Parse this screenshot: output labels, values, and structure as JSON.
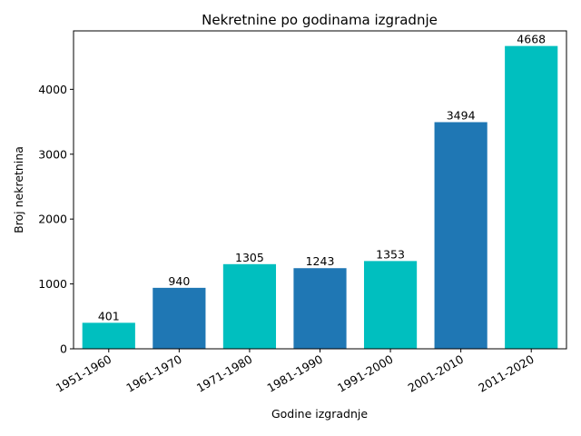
{
  "chart_data": {
    "type": "bar",
    "title": "Nekretnine po godinama izgradnje",
    "xlabel": "Godine izgradnje",
    "ylabel": "Broj nekretnina",
    "categories": [
      "1951-1960",
      "1961-1970",
      "1971-1980",
      "1981-1990",
      "1991-2000",
      "2001-2010",
      "2011-2020"
    ],
    "values": [
      401,
      940,
      1305,
      1243,
      1353,
      3494,
      4668
    ],
    "data_labels": [
      "401",
      "940",
      "1305",
      "1243",
      "1353",
      "3494",
      "4668"
    ],
    "bar_colors": [
      "#00bfbf",
      "#1f77b4",
      "#00bfbf",
      "#1f77b4",
      "#00bfbf",
      "#1f77b4",
      "#00bfbf"
    ],
    "ylim": [
      0,
      4901
    ],
    "yticks": [
      0,
      1000,
      2000,
      3000,
      4000
    ],
    "ytick_labels": [
      "0",
      "1000",
      "2000",
      "3000",
      "4000"
    ],
    "grid": false,
    "legend": "none"
  }
}
